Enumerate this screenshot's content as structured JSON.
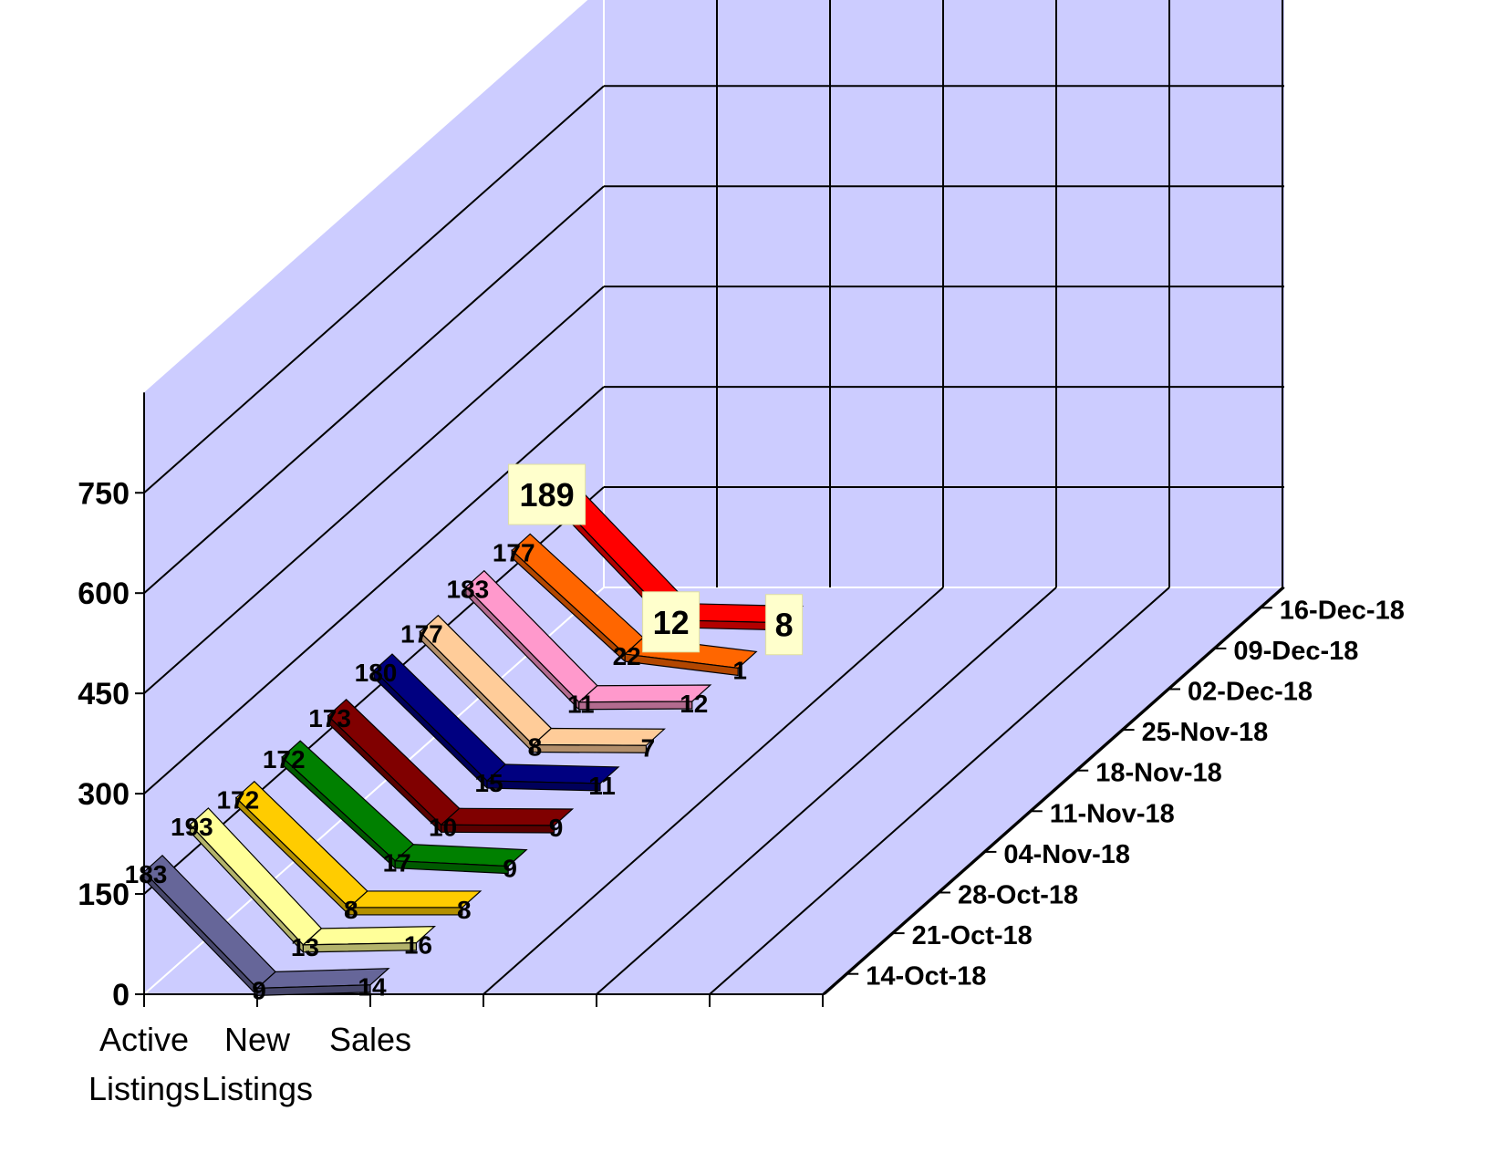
{
  "chart_data": {
    "type": "line",
    "subtype": "3d-line",
    "title": "",
    "categories": [
      "Active Listings",
      "New Listings",
      "Sales"
    ],
    "category_lines": [
      [
        "Active",
        "Listings"
      ],
      [
        "New",
        "Listings"
      ],
      [
        "Sales"
      ]
    ],
    "y_ticks": [
      "0",
      "150",
      "300",
      "450",
      "600",
      "750"
    ],
    "ylim": [
      0,
      900
    ],
    "grid": true,
    "wall_color": "#ccccff",
    "series": [
      {
        "name": "14-Oct-18",
        "values": [
          183,
          9,
          14
        ],
        "color": "#666699"
      },
      {
        "name": "21-Oct-18",
        "values": [
          193,
          13,
          16
        ],
        "color": "#ffff99"
      },
      {
        "name": "28-Oct-18",
        "values": [
          172,
          8,
          8
        ],
        "color": "#ffcc00"
      },
      {
        "name": "04-Nov-18",
        "values": [
          172,
          17,
          9
        ],
        "color": "#008000"
      },
      {
        "name": "11-Nov-18",
        "values": [
          173,
          10,
          9
        ],
        "color": "#800000"
      },
      {
        "name": "18-Nov-18",
        "values": [
          180,
          15,
          11
        ],
        "color": "#000080"
      },
      {
        "name": "25-Nov-18",
        "values": [
          177,
          8,
          7
        ],
        "color": "#ffcc99"
      },
      {
        "name": "02-Dec-18",
        "values": [
          183,
          11,
          12
        ],
        "color": "#ff99cc"
      },
      {
        "name": "09-Dec-18",
        "values": [
          177,
          22,
          1
        ],
        "color": "#ff6600"
      },
      {
        "name": "16-Dec-18",
        "values": [
          189,
          12,
          8
        ],
        "color": "#ff0000"
      }
    ],
    "value_labels": [
      [
        "183",
        "9",
        "14"
      ],
      [
        "193",
        "13",
        "16"
      ],
      [
        "172",
        "8",
        "8"
      ],
      [
        "172",
        "17",
        "9"
      ],
      [
        "173",
        "10",
        "9"
      ],
      [
        "180",
        "15",
        "11"
      ],
      [
        "177",
        "8",
        "7"
      ],
      [
        "183",
        "11",
        "12"
      ],
      [
        "177",
        "22",
        "1"
      ],
      [
        "189",
        "12",
        "8"
      ]
    ],
    "highlight_label_color": "#ffffcc"
  }
}
